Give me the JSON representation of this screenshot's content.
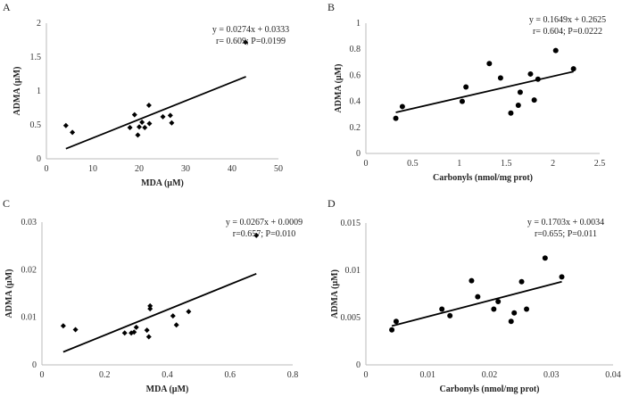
{
  "chart_data": [
    {
      "type": "scatter",
      "panel": "A",
      "xlabel": "MDA (µM)",
      "ylabel": "ADMA (µM)",
      "xlim": [
        0,
        50
      ],
      "ylim": [
        0,
        2
      ],
      "xticks": [
        0,
        10,
        20,
        30,
        40,
        50
      ],
      "yticks": [
        0,
        0.5,
        1,
        1.5,
        2
      ],
      "ytick_labels": [
        "0",
        "0.5",
        "1",
        "1.5",
        "2"
      ],
      "marker": "diamond",
      "equation": "y = 0.0274x + 0.0333",
      "stats": "r= 0.609; P=0.0199",
      "trend": {
        "slope": 0.0274,
        "intercept": 0.0333,
        "xrange": [
          4.2,
          43
        ]
      },
      "x": [
        4.2,
        5.6,
        18.0,
        19.0,
        19.7,
        20.0,
        20.6,
        21.2,
        22.1,
        22.2,
        25.1,
        26.7,
        27.0,
        42.9
      ],
      "y": [
        0.49,
        0.39,
        0.46,
        0.65,
        0.35,
        0.47,
        0.54,
        0.46,
        0.79,
        0.52,
        0.62,
        0.64,
        0.53,
        1.72
      ]
    },
    {
      "type": "scatter",
      "panel": "B",
      "xlabel": "Carbonyls (nmol/mg prot)",
      "ylabel": "ADMA (µM)",
      "xlim": [
        0,
        2.5
      ],
      "ylim": [
        0,
        1
      ],
      "xticks": [
        0,
        0.5,
        1,
        1.5,
        2,
        2.5
      ],
      "yticks": [
        0,
        0.2,
        0.4,
        0.6,
        0.8,
        1
      ],
      "ytick_labels": [
        "0",
        "0.2",
        "0.4",
        "0.6",
        "0.8",
        "1"
      ],
      "marker": "circle",
      "equation": "y = 0.1649x + 0.2625",
      "stats": "r= 0.604; P=0.0222",
      "trend": {
        "slope": 0.1649,
        "intercept": 0.2625,
        "xrange": [
          0.32,
          2.22
        ]
      },
      "x": [
        0.32,
        0.39,
        1.03,
        1.07,
        1.32,
        1.44,
        1.55,
        1.63,
        1.65,
        1.76,
        1.8,
        1.84,
        2.03,
        2.22
      ],
      "y": [
        0.27,
        0.36,
        0.4,
        0.51,
        0.69,
        0.58,
        0.31,
        0.37,
        0.47,
        0.61,
        0.41,
        0.57,
        0.79,
        0.65
      ]
    },
    {
      "type": "scatter",
      "panel": "C",
      "xlabel": "MDA (µM)",
      "ylabel": "ADMA (µM)",
      "xlim": [
        0,
        0.8
      ],
      "ylim": [
        0,
        0.03
      ],
      "xticks": [
        0,
        0.2,
        0.4,
        0.6,
        0.8
      ],
      "yticks": [
        0,
        0.01,
        0.02,
        0.03
      ],
      "ytick_labels": [
        "0",
        "0.01",
        "0.02",
        "0.03"
      ],
      "marker": "diamond",
      "equation": "y = 0.0267x + 0.0009",
      "stats": "r=0.657; P=0.010",
      "trend": {
        "slope": 0.0267,
        "intercept": 0.0009,
        "xrange": [
          0.068,
          0.684
        ]
      },
      "x": [
        0.068,
        0.107,
        0.264,
        0.285,
        0.294,
        0.301,
        0.335,
        0.341,
        0.345,
        0.345,
        0.418,
        0.429,
        0.468,
        0.684
      ],
      "y": [
        0.0082,
        0.0074,
        0.0067,
        0.0067,
        0.0069,
        0.0079,
        0.0073,
        0.0059,
        0.0124,
        0.0118,
        0.0103,
        0.0084,
        0.0112,
        0.0272
      ]
    },
    {
      "type": "scatter",
      "panel": "D",
      "xlabel": "Carbonyls (nmol/mg prot)",
      "ylabel": "ADMA (µM)",
      "xlim": [
        0,
        0.04
      ],
      "ylim": [
        0,
        0.015
      ],
      "xticks": [
        0,
        0.01,
        0.02,
        0.03,
        0.04
      ],
      "yticks": [
        0,
        0.005,
        0.01,
        0.015
      ],
      "ytick_labels": [
        "0",
        "0.005",
        "0.01",
        "0.015"
      ],
      "marker": "circle",
      "equation": "y = 0.1703x + 0.0034",
      "stats": "r=0.655; P=0.011",
      "trend": {
        "slope": 0.1703,
        "intercept": 0.0034,
        "xrange": [
          0.0042,
          0.0317
        ]
      },
      "x": [
        0.0042,
        0.0049,
        0.0123,
        0.0136,
        0.0171,
        0.0181,
        0.0207,
        0.0214,
        0.0235,
        0.024,
        0.0252,
        0.026,
        0.029,
        0.0317
      ],
      "y": [
        0.0037,
        0.0046,
        0.0059,
        0.0052,
        0.0089,
        0.0072,
        0.0059,
        0.0067,
        0.0046,
        0.0055,
        0.0088,
        0.0059,
        0.0113,
        0.0093
      ]
    }
  ]
}
